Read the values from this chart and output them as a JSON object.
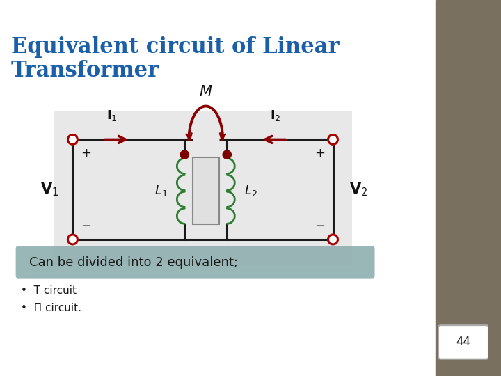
{
  "title_line1": "Equivalent circuit of Linear",
  "title_line2": "Transformer",
  "title_color": "#1A5FA8",
  "bg_color": "#FFFFFF",
  "sidebar_color": "#7A7060",
  "page_number": "44",
  "circuit_line_color": "#1a1a1a",
  "terminal_color": "#AA0000",
  "inductor_color": "#2E7D32",
  "arrow_color": "#8B0000",
  "mutual_arc_color": "#8B0000",
  "dot_color": "#7B0000",
  "label_color": "#1a1a1a",
  "voltage_color": "#1a1a1a",
  "box_bg_color": "#8FAFB0",
  "box_text": "Can be divided into 2 equivalent;",
  "bullet1": "T circuit",
  "bullet2": "Π circuit.",
  "footnote_border": "#999999",
  "circuit_bg": "#E8E8E8"
}
